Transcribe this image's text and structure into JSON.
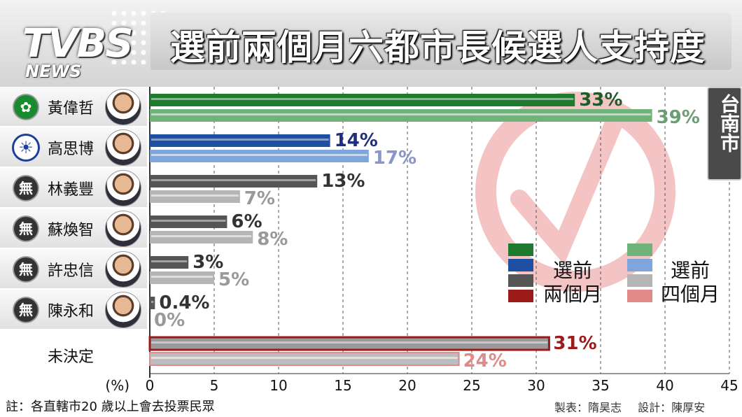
{
  "header": {
    "logo_main": "TVBS",
    "logo_sub": "NEWS",
    "title": "選前兩個月六都市長候選人支持度"
  },
  "city_label": "台南市",
  "candidates": [
    {
      "name": "黃偉哲",
      "badge": "",
      "party": "dpp"
    },
    {
      "name": "高思博",
      "badge": "",
      "party": "kmt"
    },
    {
      "name": "林義豐",
      "badge": "無",
      "party": "ind"
    },
    {
      "name": "蘇煥智",
      "badge": "無",
      "party": "ind"
    },
    {
      "name": "許忠信",
      "badge": "無",
      "party": "ind"
    },
    {
      "name": "陳永和",
      "badge": "無",
      "party": "ind"
    }
  ],
  "undecided_label": "未決定",
  "legend": {
    "recent": "選前\n兩個月",
    "earlier": "選前\n四個月"
  },
  "colors": {
    "dpp_recent": "#1e7b2e",
    "dpp_earlier": "#6fb27a",
    "kmt_recent": "#1f4fa3",
    "kmt_earlier": "#7fa6dc",
    "ind_recent": "#555555",
    "ind_earlier": "#b5b5b5",
    "und_recent": "#9b1b1b",
    "und_earlier": "#e08a8a"
  },
  "chart_data": {
    "type": "bar",
    "orientation": "horizontal",
    "title": "選前兩個月六都市長候選人支持度",
    "categories": [
      "黃偉哲",
      "高思博",
      "林義豐",
      "蘇煥智",
      "許忠信",
      "陳永和",
      "未決定"
    ],
    "series": [
      {
        "name": "選前兩個月",
        "values": [
          33,
          14,
          13,
          6,
          3,
          0.4,
          31
        ],
        "labels": [
          "33%",
          "14%",
          "13%",
          "6%",
          "3%",
          "0.4%",
          "31%"
        ]
      },
      {
        "name": "選前四個月",
        "values": [
          39,
          17,
          7,
          8,
          5,
          0,
          24
        ],
        "labels": [
          "39%",
          "17%",
          "7%",
          "8%",
          "5%",
          "0%",
          "24%"
        ]
      }
    ],
    "xlabel": "(%)",
    "xlim": [
      0,
      45
    ],
    "xticks": [
      0,
      5,
      10,
      15,
      20,
      25,
      30,
      35,
      40,
      45
    ],
    "grid": true
  },
  "footer": {
    "note": "註：各直轄市20 歲以上會去投票民眾",
    "credit_maker": "製表：隋昊志",
    "credit_design": "設計：陳厚安"
  }
}
